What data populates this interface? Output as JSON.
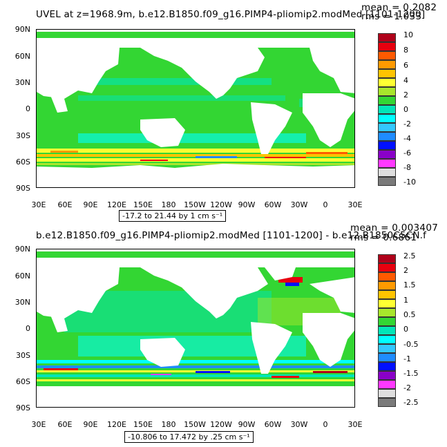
{
  "panels": [
    {
      "title": "UVEL at z=1968.9m, b.e12.B1850.f09_g16.PIMP4-pliomip2.modMed [1101-1200]",
      "mean": "mean = 0.2082",
      "rms": "rms = 1.033",
      "range_note": "-17.2 to 21.44 by 1 cm s⁻¹",
      "colorbar_labels": [
        "10",
        "8",
        "6",
        "4",
        "2",
        "0",
        "-2",
        "-4",
        "-6",
        "-8",
        "-10"
      ]
    },
    {
      "title": "b.e12.B1850.f09_g16.PIMP4-pliomip2.modMed [1101-1200] - b.e12.B1850C5CN.f",
      "mean": "mean = 0.003407",
      "rms": "rms = 0.6861",
      "range_note": "-10.806 to 17.472 by .25 cm s⁻¹",
      "colorbar_labels": [
        "2.5",
        "2",
        "1.5",
        "1",
        "0.5",
        "0",
        "-0.5",
        "-1",
        "-1.5",
        "-2",
        "-2.5"
      ]
    }
  ],
  "lat_labels": [
    "90N",
    "60N",
    "30N",
    "0",
    "30S",
    "60S",
    "90S"
  ],
  "lon_labels": [
    "30E",
    "60E",
    "90E",
    "120E",
    "150E",
    "180",
    "150W",
    "120W",
    "90W",
    "60W",
    "30W",
    "0",
    "30E"
  ],
  "colorbar_colors": [
    "#b0001a",
    "#e8000f",
    "#ff5a00",
    "#ff9a00",
    "#ffc400",
    "#ffff33",
    "#a8e62c",
    "#33d633",
    "#00e6b8",
    "#00ffff",
    "#33c8ff",
    "#1f8cff",
    "#0010ff",
    "#8a00c8",
    "#ff38ff",
    "#dedede",
    "#7a7a7a"
  ]
}
